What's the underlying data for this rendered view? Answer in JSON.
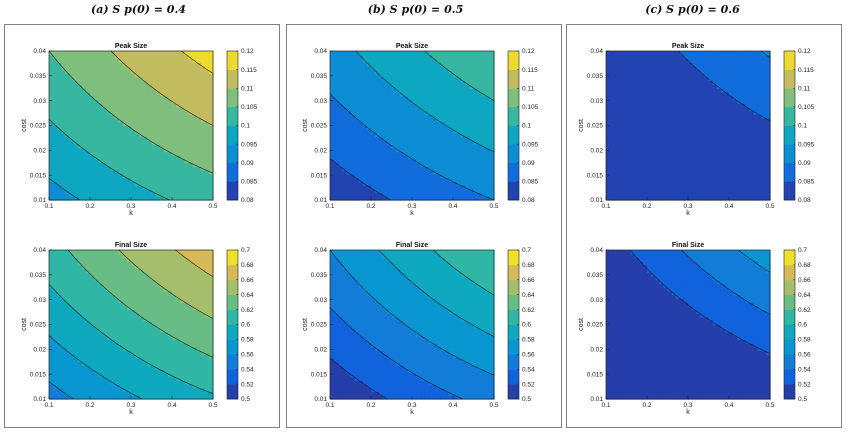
{
  "panels": [
    {
      "title": "(a) S  p(0) = 0.4",
      "peak_label": "Peak Size",
      "final_label": "Final Size"
    },
    {
      "title": "(b) S  p(0) = 0.5",
      "peak_label": "Peak Size",
      "final_label": "Final Size"
    },
    {
      "title": "(c) S  p(0) = 0.6",
      "peak_label": "Peak Size",
      "final_label": "Final Size"
    }
  ],
  "chart_data": [
    {
      "type": "heatmap",
      "panel": "(a) S p(0) = 0.4",
      "title": "Peak Size",
      "xlabel": "k",
      "ylabel": "cost",
      "xlim": [
        0.1,
        0.5
      ],
      "ylim": [
        0.01,
        0.04
      ],
      "clim": [
        0.08,
        0.12
      ],
      "x_ticks": [
        "0.1",
        "0.2",
        "0.3",
        "0.4",
        "0.5"
      ],
      "y_ticks": [
        "0.01",
        "0.015",
        "0.02",
        "0.025",
        "0.03",
        "0.035",
        "0.04"
      ],
      "colorbar_ticks": [
        "0.08",
        "0.085",
        "0.09",
        "0.095",
        "0.1",
        "0.105",
        "0.11",
        "0.115",
        "0.12"
      ],
      "field": {
        "z00": 0.093,
        "zx": 0.011,
        "zy": 0.014,
        "zxy": 0.003,
        "curv": 0.004
      }
    },
    {
      "type": "heatmap",
      "panel": "(a) S p(0) = 0.4",
      "title": "Final Size",
      "xlabel": "k",
      "ylabel": "cost",
      "xlim": [
        0.1,
        0.5
      ],
      "ylim": [
        0.01,
        0.04
      ],
      "clim": [
        0.5,
        0.7
      ],
      "x_ticks": [
        "0.1",
        "0.2",
        "0.3",
        "0.4",
        "0.5"
      ],
      "y_ticks": [
        "0.01",
        "0.015",
        "0.02",
        "0.025",
        "0.03",
        "0.035",
        "0.04"
      ],
      "colorbar_ticks": [
        "0.5",
        "0.52",
        "0.54",
        "0.56",
        "0.58",
        "0.6",
        "0.62",
        "0.64",
        "0.66",
        "0.68",
        "0.7"
      ],
      "field": {
        "z00": 0.552,
        "zx": 0.055,
        "zy": 0.07,
        "zxy": 0.015,
        "curv": 0.02
      }
    },
    {
      "type": "heatmap",
      "panel": "(b) S p(0) = 0.5",
      "title": "Peak Size",
      "xlabel": "k",
      "ylabel": "cost",
      "xlim": [
        0.1,
        0.5
      ],
      "ylim": [
        0.01,
        0.04
      ],
      "clim": [
        0.08,
        0.12
      ],
      "x_ticks": [
        "0.1",
        "0.2",
        "0.3",
        "0.4",
        "0.5"
      ],
      "y_ticks": [
        "0.01",
        "0.015",
        "0.02",
        "0.025",
        "0.03",
        "0.035",
        "0.04"
      ],
      "colorbar_ticks": [
        "0.08",
        "0.085",
        "0.09",
        "0.095",
        "0.1",
        "0.105",
        "0.11",
        "0.115",
        "0.12"
      ],
      "field": {
        "z00": 0.0815,
        "zx": 0.01,
        "zy": 0.013,
        "zxy": 0.003,
        "curv": 0.003
      }
    },
    {
      "type": "heatmap",
      "panel": "(b) S p(0) = 0.5",
      "title": "Final Size",
      "xlabel": "k",
      "ylabel": "cost",
      "xlim": [
        0.1,
        0.5
      ],
      "ylim": [
        0.01,
        0.04
      ],
      "clim": [
        0.5,
        0.7
      ],
      "x_ticks": [
        "0.1",
        "0.2",
        "0.3",
        "0.4",
        "0.5"
      ],
      "y_ticks": [
        "0.01",
        "0.015",
        "0.02",
        "0.025",
        "0.03",
        "0.035",
        "0.04"
      ],
      "colorbar_ticks": [
        "0.5",
        "0.52",
        "0.54",
        "0.56",
        "0.58",
        "0.6",
        "0.62",
        "0.64",
        "0.66",
        "0.68",
        "0.7"
      ],
      "field": {
        "z00": 0.502,
        "zx": 0.055,
        "zy": 0.068,
        "zxy": 0.015,
        "curv": 0.02
      }
    },
    {
      "type": "heatmap",
      "panel": "(c) S p(0) = 0.6",
      "title": "Peak Size",
      "xlabel": "k",
      "ylabel": "cost",
      "xlim": [
        0.1,
        0.5
      ],
      "ylim": [
        0.01,
        0.04
      ],
      "clim": [
        0.08,
        0.12
      ],
      "x_ticks": [
        "0.1",
        "0.2",
        "0.3",
        "0.4",
        "0.5"
      ],
      "y_ticks": [
        "0.01",
        "0.015",
        "0.02",
        "0.025",
        "0.03",
        "0.035",
        "0.04"
      ],
      "colorbar_ticks": [
        "0.08",
        "0.085",
        "0.09",
        "0.095",
        "0.1",
        "0.105",
        "0.11",
        "0.115",
        "0.12"
      ],
      "field": {
        "z00": 0.0705,
        "zx": 0.009,
        "zy": 0.011,
        "zxy": 0.003,
        "curv": 0.003
      }
    },
    {
      "type": "heatmap",
      "panel": "(c) S p(0) = 0.6",
      "title": "Final Size",
      "xlabel": "k",
      "ylabel": "cost",
      "xlim": [
        0.1,
        0.5
      ],
      "ylim": [
        0.01,
        0.04
      ],
      "clim": [
        0.5,
        0.7
      ],
      "x_ticks": [
        "0.1",
        "0.2",
        "0.3",
        "0.4",
        "0.5"
      ],
      "y_ticks": [
        "0.01",
        "0.015",
        "0.02",
        "0.025",
        "0.03",
        "0.035",
        "0.04"
      ],
      "colorbar_ticks": [
        "0.5",
        "0.52",
        "0.54",
        "0.56",
        "0.58",
        "0.6",
        "0.62",
        "0.64",
        "0.66",
        "0.68",
        "0.7"
      ],
      "field": {
        "z00": 0.45,
        "zx": 0.055,
        "zy": 0.07,
        "zxy": 0.015,
        "curv": 0.02
      }
    }
  ],
  "colors": {
    "frame": "#808080",
    "contour": "#1a1a1a",
    "axis": "#222222"
  }
}
